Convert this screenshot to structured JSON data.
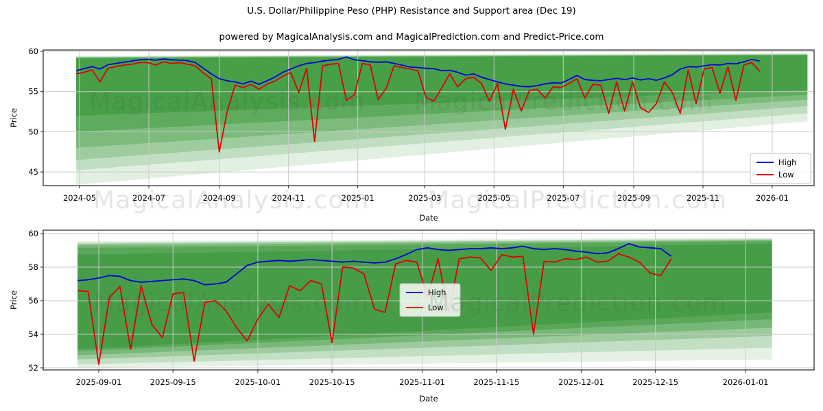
{
  "title": "U.S. Dollar/Philippine Peso (PHP) Resistance and Support area (Dec 19)",
  "subtitle": "powered by MagicalAnalysis.com and MagicalPrediction.com and Predict-Price.com",
  "watermarks": {
    "analysis": "MagicalAnalysis.com",
    "prediction": "MagicalPrediction.com"
  },
  "colors": {
    "high_line": "#0000dd",
    "low_line": "#e00000",
    "band_green": "#228b22",
    "grid": "#c9c9c9",
    "axis": "#222222",
    "tick_text": "#000000",
    "legend_bg": "rgba(255,255,255,0.82)",
    "legend_border": "#bfbfbf"
  },
  "legend": {
    "high_label": "High",
    "low_label": "Low",
    "position_top": "lower right",
    "position_bottom": "lower center"
  },
  "chart_data": [
    {
      "type": "line",
      "title": "",
      "xlabel": "Date",
      "ylabel": "Price",
      "grid": true,
      "ylim": [
        43.3,
        60.2
      ],
      "yticks": [
        60,
        55,
        50,
        45
      ],
      "xticks": [
        "2024-05",
        "2024-07",
        "2024-09",
        "2024-11",
        "2025-01",
        "2025-03",
        "2025-05",
        "2025-07",
        "2025-09",
        "2025-11",
        "2026-01"
      ],
      "x_start_date": "2024-04-28",
      "x_step_days": 7,
      "series": [
        {
          "name": "High",
          "color": "#0000dd",
          "values": [
            57.6,
            57.85,
            58.1,
            57.8,
            58.35,
            58.5,
            58.65,
            58.8,
            58.95,
            59.0,
            58.9,
            59.05,
            58.95,
            58.9,
            58.85,
            58.6,
            57.9,
            57.2,
            56.6,
            56.35,
            56.2,
            55.95,
            56.3,
            55.9,
            56.35,
            56.8,
            57.4,
            57.8,
            58.2,
            58.5,
            58.6,
            58.8,
            58.9,
            59.0,
            59.3,
            58.95,
            58.85,
            58.7,
            58.65,
            58.7,
            58.5,
            58.3,
            58.05,
            58.0,
            57.9,
            57.85,
            57.6,
            57.65,
            57.4,
            57.05,
            57.2,
            56.8,
            56.5,
            56.2,
            55.95,
            55.8,
            55.65,
            55.6,
            55.75,
            55.95,
            56.1,
            56.05,
            56.5,
            57.0,
            56.5,
            56.4,
            56.35,
            56.5,
            56.65,
            56.5,
            56.7,
            56.45,
            56.6,
            56.4,
            56.7,
            57.1,
            57.8,
            58.1,
            58.05,
            58.2,
            58.35,
            58.3,
            58.5,
            58.45,
            58.7,
            59.0,
            58.8
          ]
        },
        {
          "name": "Low",
          "color": "#e00000",
          "values": [
            57.2,
            57.4,
            57.7,
            56.2,
            57.9,
            58.1,
            58.3,
            58.4,
            58.6,
            58.6,
            58.3,
            58.7,
            58.5,
            58.6,
            58.4,
            58.2,
            57.3,
            56.6,
            47.5,
            52.5,
            55.8,
            55.5,
            55.9,
            55.3,
            55.9,
            56.3,
            56.9,
            57.4,
            54.9,
            57.9,
            48.8,
            58.2,
            58.4,
            58.5,
            53.9,
            54.6,
            58.5,
            58.3,
            54.0,
            55.4,
            58.2,
            58.0,
            57.8,
            57.6,
            54.3,
            53.8,
            55.5,
            57.2,
            55.6,
            56.6,
            56.8,
            56.0,
            53.8,
            56.0,
            50.3,
            55.3,
            52.6,
            55.1,
            55.3,
            54.2,
            55.6,
            55.5,
            56.0,
            56.6,
            54.2,
            55.9,
            55.8,
            52.3,
            56.2,
            52.6,
            56.2,
            53.0,
            52.4,
            53.5,
            56.2,
            54.9,
            52.3,
            57.7,
            53.5,
            57.8,
            58.0,
            54.8,
            58.1,
            53.9,
            58.3,
            58.6,
            57.5
          ]
        }
      ],
      "bands": [
        {
          "x0": "2024-04-28",
          "x1": "2026-02-01",
          "top0": 59.45,
          "top1": 59.75,
          "bottom0": 43.4,
          "bottom1": 51.3,
          "opacity": 0.13
        },
        {
          "x0": "2024-04-28",
          "x1": "2026-02-01",
          "top0": 59.35,
          "top1": 59.7,
          "bottom0": 45.2,
          "bottom1": 52.3,
          "opacity": 0.17
        },
        {
          "x0": "2024-04-28",
          "x1": "2026-02-01",
          "top0": 59.3,
          "top1": 59.65,
          "bottom0": 46.5,
          "bottom1": 53.2,
          "opacity": 0.22
        },
        {
          "x0": "2024-04-28",
          "x1": "2026-02-01",
          "top0": 59.25,
          "top1": 59.6,
          "bottom0": 48.0,
          "bottom1": 54.0,
          "opacity": 0.27
        },
        {
          "x0": "2024-04-28",
          "x1": "2026-02-01",
          "top0": 59.2,
          "top1": 59.55,
          "bottom0": 50.0,
          "bottom1": 54.6,
          "opacity": 0.33
        },
        {
          "x0": "2024-04-28",
          "x1": "2026-02-01",
          "top0": 59.1,
          "top1": 59.5,
          "bottom0": 52.0,
          "bottom1": 55.2,
          "opacity": 0.38
        }
      ]
    },
    {
      "type": "line",
      "title": "",
      "xlabel": "Date",
      "ylabel": "Price",
      "grid": true,
      "ylim": [
        51.9,
        60.2
      ],
      "yticks": [
        60,
        58,
        56,
        54,
        52
      ],
      "xticks": [
        "2025-09-01",
        "2025-09-15",
        "2025-10-01",
        "2025-10-15",
        "2025-11-01",
        "2025-11-15",
        "2025-12-01",
        "2025-12-15",
        "2026-01-01"
      ],
      "x_start_date": "2025-08-28",
      "x_step_days": 2,
      "series": [
        {
          "name": "High",
          "color": "#0000dd",
          "values": [
            57.2,
            57.25,
            57.35,
            57.5,
            57.45,
            57.2,
            57.1,
            57.15,
            57.2,
            57.25,
            57.3,
            57.2,
            56.95,
            57.0,
            57.1,
            57.6,
            58.1,
            58.3,
            58.35,
            58.4,
            58.35,
            58.4,
            58.45,
            58.4,
            58.35,
            58.3,
            58.35,
            58.3,
            58.25,
            58.3,
            58.5,
            58.75,
            59.05,
            59.15,
            59.05,
            59.0,
            59.05,
            59.1,
            59.1,
            59.15,
            59.1,
            59.15,
            59.25,
            59.1,
            59.05,
            59.1,
            59.05,
            58.95,
            58.9,
            58.8,
            58.85,
            59.1,
            59.4,
            59.2,
            59.15,
            59.1,
            58.65
          ]
        },
        {
          "name": "Low",
          "color": "#e00000",
          "values": [
            56.6,
            56.55,
            52.2,
            56.2,
            56.85,
            53.1,
            56.9,
            54.6,
            53.8,
            56.4,
            56.5,
            52.4,
            55.9,
            56.0,
            55.4,
            54.4,
            53.6,
            54.9,
            55.8,
            55.0,
            56.9,
            56.6,
            57.2,
            57.0,
            53.5,
            58.0,
            57.95,
            57.6,
            55.5,
            55.3,
            58.2,
            58.4,
            58.3,
            56.2,
            58.5,
            55.3,
            58.5,
            58.6,
            58.55,
            57.8,
            58.75,
            58.6,
            58.65,
            54.0,
            58.35,
            58.3,
            58.5,
            58.45,
            58.6,
            58.3,
            58.35,
            58.8,
            58.6,
            58.3,
            57.65,
            57.5,
            58.5
          ]
        }
      ],
      "bands": [
        {
          "x0": "2025-08-28",
          "x1": "2026-01-06",
          "top0": 59.55,
          "top1": 59.75,
          "bottom0": 52.0,
          "bottom1": 52.5,
          "opacity": 0.12
        },
        {
          "x0": "2025-08-28",
          "x1": "2026-01-06",
          "top0": 59.45,
          "top1": 59.7,
          "bottom0": 52.2,
          "bottom1": 53.2,
          "opacity": 0.17
        },
        {
          "x0": "2025-08-28",
          "x1": "2026-01-06",
          "top0": 59.4,
          "top1": 59.65,
          "bottom0": 52.5,
          "bottom1": 53.9,
          "opacity": 0.24
        },
        {
          "x0": "2025-08-28",
          "x1": "2026-01-06",
          "top0": 59.3,
          "top1": 59.6,
          "bottom0": 52.75,
          "bottom1": 54.4,
          "opacity": 0.3
        },
        {
          "x0": "2025-08-28",
          "x1": "2026-01-06",
          "top0": 59.15,
          "top1": 59.55,
          "bottom0": 53.0,
          "bottom1": 54.9,
          "opacity": 0.34
        },
        {
          "x0": "2025-08-28",
          "x1": "2026-01-06",
          "top0": 58.75,
          "top1": 59.4,
          "bottom0": 53.1,
          "bottom1": 55.3,
          "opacity": 0.34
        }
      ]
    }
  ]
}
